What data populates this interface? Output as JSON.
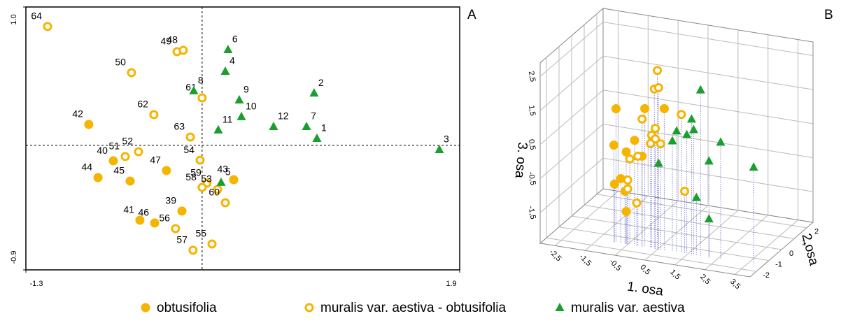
{
  "chart_data": [
    {
      "type": "scatter",
      "panel": "A",
      "xlim": [
        -1.3,
        1.9
      ],
      "ylim": [
        -0.9,
        1.0
      ],
      "xticks": [
        -1.3,
        1.9
      ],
      "yticks": [
        {
          "value": 1,
          "label": "1.0"
        },
        -0.9
      ],
      "ref_x": 0,
      "ref_y": 0,
      "series": [
        {
          "name": "obtusifolia",
          "color": "#f5b400",
          "marker": "filled-circle",
          "labels": [
            "42",
            "40",
            "44",
            "45",
            "47",
            "39",
            "41",
            "46",
            "43"
          ],
          "x": [
            -0.836,
            -0.655,
            -0.768,
            -0.531,
            -0.263,
            -0.149,
            -0.459,
            -0.35,
            0.233
          ],
          "y": [
            0.151,
            -0.112,
            -0.233,
            -0.258,
            -0.182,
            -0.475,
            -0.541,
            -0.561,
            -0.248
          ]
        },
        {
          "name": "muralis var. aestiva - obtusifolia",
          "color": "#f5b400",
          "marker": "open-circle",
          "labels": [
            "64",
            "49",
            "48",
            "50",
            "62",
            "61",
            "63",
            "54",
            "51",
            "52",
            "59",
            "58",
            "53",
            "60",
            "56",
            "57",
            "55"
          ],
          "x": [
            -1.14,
            -0.185,
            -0.139,
            -0.521,
            -0.356,
            0.0,
            -0.087,
            -0.015,
            -0.567,
            -0.469,
            0.036,
            0.0,
            0.114,
            0.171,
            -0.196,
            -0.067,
            0.073
          ],
          "y": [
            0.859,
            0.677,
            0.687,
            0.525,
            0.222,
            0.343,
            0.06,
            -0.107,
            -0.081,
            -0.046,
            -0.273,
            -0.304,
            -0.319,
            -0.415,
            -0.602,
            -0.758,
            -0.713
          ]
        },
        {
          "name": "muralis var. aestiva",
          "color": "#1a9e2e",
          "marker": "triangle",
          "labels": [
            "6",
            "4",
            "8",
            "2",
            "9",
            "10",
            "11",
            "12",
            "7",
            "1",
            "3",
            "5"
          ],
          "x": [
            0.191,
            0.171,
            -0.062,
            0.826,
            0.274,
            0.29,
            0.119,
            0.527,
            0.77,
            0.847,
            1.75,
            0.14
          ],
          "y": [
            0.692,
            0.535,
            0.394,
            0.378,
            0.328,
            0.207,
            0.111,
            0.136,
            0.136,
            0.05,
            -0.031,
            -0.268
          ]
        }
      ]
    },
    {
      "type": "scatter3d",
      "panel": "B",
      "xlabel": "1. osa",
      "ylabel": "2.osa",
      "zlabel": "3. osa",
      "xlim": [
        -3,
        4
      ],
      "ylim": [
        -2.5,
        2.5
      ],
      "zlim": [
        -2.4,
        2.9
      ],
      "xticks": [
        {
          "value": -2.5,
          "label": "-2,5"
        },
        {
          "value": -1.5,
          "label": "-1,5"
        },
        {
          "value": -0.5,
          "label": "-0,5"
        },
        {
          "value": 0.5,
          "label": "0,5"
        },
        {
          "value": 1.5,
          "label": "1,5"
        },
        {
          "value": 2.5,
          "label": "2,5"
        },
        {
          "value": 3.5,
          "label": "3,5"
        }
      ],
      "yticks": [
        -2,
        -1,
        0,
        1,
        2
      ],
      "zticks": [
        {
          "value": -1.5,
          "label": "-1,5"
        },
        {
          "value": -0.5,
          "label": "-0,5"
        },
        {
          "value": 0.5,
          "label": "0,5"
        },
        {
          "value": 1.5,
          "label": "1,5"
        },
        {
          "value": 2.5,
          "label": "2,5"
        }
      ],
      "series": [
        {
          "color": "#f5b400",
          "marker": "filled-circle",
          "x": [
            -0.89,
            -0.96,
            -0.27,
            0.07,
            0.72,
            -0.55,
            -0.02,
            -0.73,
            -0.94,
            -0.59,
            -0.55
          ],
          "y": [
            -1.5,
            -1.5,
            -1.5,
            -1.5,
            -1.5,
            -1.5,
            -1.5,
            -1.5,
            -1.5,
            -1.5,
            -1.5
          ],
          "z": [
            1.53,
            0.45,
            0.69,
            1.67,
            1.76,
            0.31,
            0.26,
            -0.5,
            -0.69,
            -0.85,
            -1.44
          ]
        },
        {
          "color": "#f5b400",
          "marker": "open-circle",
          "x": [
            0.49,
            0.39,
            0.53,
            -0.02,
            1.29,
            0.42,
            0.3,
            0.42,
            0.6,
            0.26,
            -0.16,
            -0.43,
            -0.5,
            -0.5,
            1.4,
            -0.2
          ],
          "y": [
            -1.5,
            -1.5,
            -1.5,
            -1.5,
            -1.5,
            -1.5,
            -1.5,
            -1.5,
            -1.5,
            -1.5,
            -1.5,
            -1.5,
            -1.5,
            -1.5,
            -1.5,
            -1.5
          ],
          "z": [
            2.85,
            2.29,
            2.35,
            1.35,
            1.67,
            1.14,
            0.92,
            0.83,
            0.71,
            0.67,
            0.24,
            0.12,
            -0.51,
            -0.77,
            -0.57,
            -1.14
          ]
        },
        {
          "color": "#1a9e2e",
          "marker": "triangle",
          "x": [
            1.93,
            0.53,
            1.13,
            1.63,
            1.7,
            1.47,
            0.99,
            2.6,
            2.21,
            3.7,
            1.79,
            2.21
          ],
          "y": [
            -1.5,
            -1.5,
            -1.5,
            -1.5,
            -1.5,
            -1.5,
            -1.5,
            -1.5,
            -1.5,
            -1.5,
            -1.5,
            -1.5
          ],
          "z": [
            2.48,
            0.13,
            1.16,
            1.58,
            1.28,
            1.1,
            0.85,
            1.04,
            0.43,
            0.46,
            -0.7,
            -1.27
          ]
        }
      ]
    }
  ]
}
